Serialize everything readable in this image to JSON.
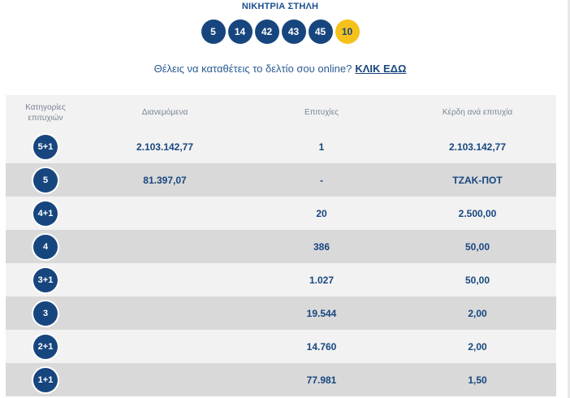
{
  "winning": {
    "title": "ΝΙΚΗΤΡΙΑ ΣΤΗΛΗ",
    "numbers": [
      "5",
      "14",
      "42",
      "43",
      "45"
    ],
    "joker": "10"
  },
  "submit": {
    "text": "Θέλεις να καταθέτεις το δελτίο σου online?",
    "link": "ΚΛΙΚ ΕΔΩ"
  },
  "table": {
    "headers": {
      "category": "Κατηγορίες επιτυχιών",
      "distributed": "Διανεμόμενα",
      "winners": "Επιτυχίες",
      "prize": "Κέρδη ανά επιτυχία"
    },
    "rows": [
      {
        "category": "5+1",
        "distributed": "2.103.142,77",
        "winners": "1",
        "prize": "2.103.142,77"
      },
      {
        "category": "5",
        "distributed": "81.397,07",
        "winners": "-",
        "prize": "ΤΖΑΚ-ΠΟΤ"
      },
      {
        "category": "4+1",
        "distributed": "",
        "winners": "20",
        "prize": "2.500,00"
      },
      {
        "category": "4",
        "distributed": "",
        "winners": "386",
        "prize": "50,00"
      },
      {
        "category": "3+1",
        "distributed": "",
        "winners": "1.027",
        "prize": "50,00"
      },
      {
        "category": "3",
        "distributed": "",
        "winners": "19.544",
        "prize": "2,00"
      },
      {
        "category": "2+1",
        "distributed": "",
        "winners": "14.760",
        "prize": "2,00"
      },
      {
        "category": "1+1",
        "distributed": "",
        "winners": "77.981",
        "prize": "1,50"
      }
    ]
  },
  "colors": {
    "ball": "#17467f",
    "joker": "#f5c21b",
    "row_light": "#f2f2f2",
    "row_dark": "#d9d9d9"
  }
}
